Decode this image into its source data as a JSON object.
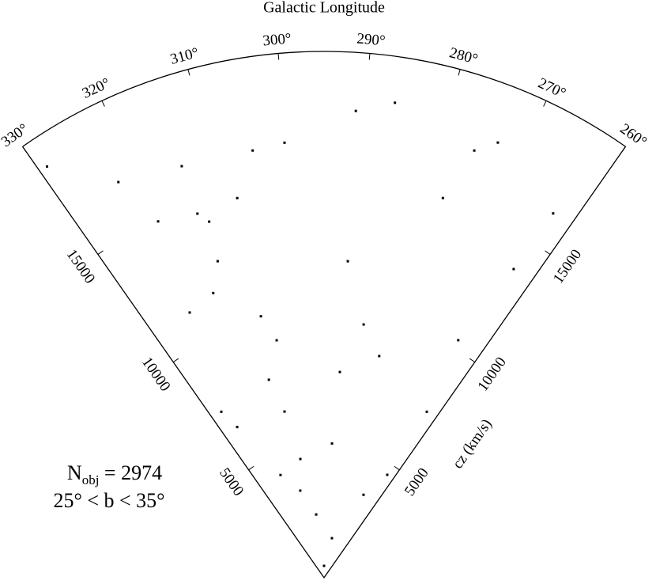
{
  "chart_data": {
    "type": "wedge",
    "title": "Galactic Longitude",
    "r_label": "cz (km/s)",
    "annotations": [
      {
        "text": "N",
        "sub": "obj",
        "rest": " = 2974"
      },
      {
        "text": "25° < b < 35°"
      }
    ],
    "color": "#000000",
    "xlim": [
      330,
      260
    ],
    "xticks": [
      {
        "value": 330,
        "label": "330°"
      },
      {
        "value": 320,
        "label": "320°"
      },
      {
        "value": 310,
        "label": "310°"
      },
      {
        "value": 300,
        "label": "300°"
      },
      {
        "value": 290,
        "label": "290°"
      },
      {
        "value": 280,
        "label": "280°"
      },
      {
        "value": 270,
        "label": "270°"
      },
      {
        "value": 260,
        "label": "260°"
      }
    ],
    "ylim": [
      0,
      20000
    ],
    "yticks": [
      5000,
      10000,
      15000
    ],
    "x": [
      269.5,
      318,
      306.3,
      325,
      295,
      283.7,
      316.3,
      312.9,
      304.5,
      290.6,
      265.5,
      281,
      321.9,
      306.3,
      320,
      329,
      290.7,
      275.6,
      273.2,
      262.8,
      263.4,
      310.6,
      308.4,
      302.1,
      310.3,
      307.9,
      286.5,
      300.2,
      322.5,
      277.6,
      263.4,
      313.6,
      308.6,
      286.1,
      263.2,
      314.2,
      291.6,
      326.8,
      291.1,
      314.1
    ],
    "values": [
      3490,
      4240,
      4600,
      6610,
      450,
      1530,
      11610,
      14220,
      16460,
      7840,
      10370,
      8680,
      11300,
      9200,
      14940,
      18850,
      12060,
      17210,
      17810,
      16360,
      4590,
      7810,
      6490,
      2420,
      3430,
      14800,
      18250,
      16600,
      16950,
      15120,
      13770,
      12690,
      10220,
      9740,
      7420,
      14650,
      5110,
      7420,
      17780,
      16550
    ]
  }
}
